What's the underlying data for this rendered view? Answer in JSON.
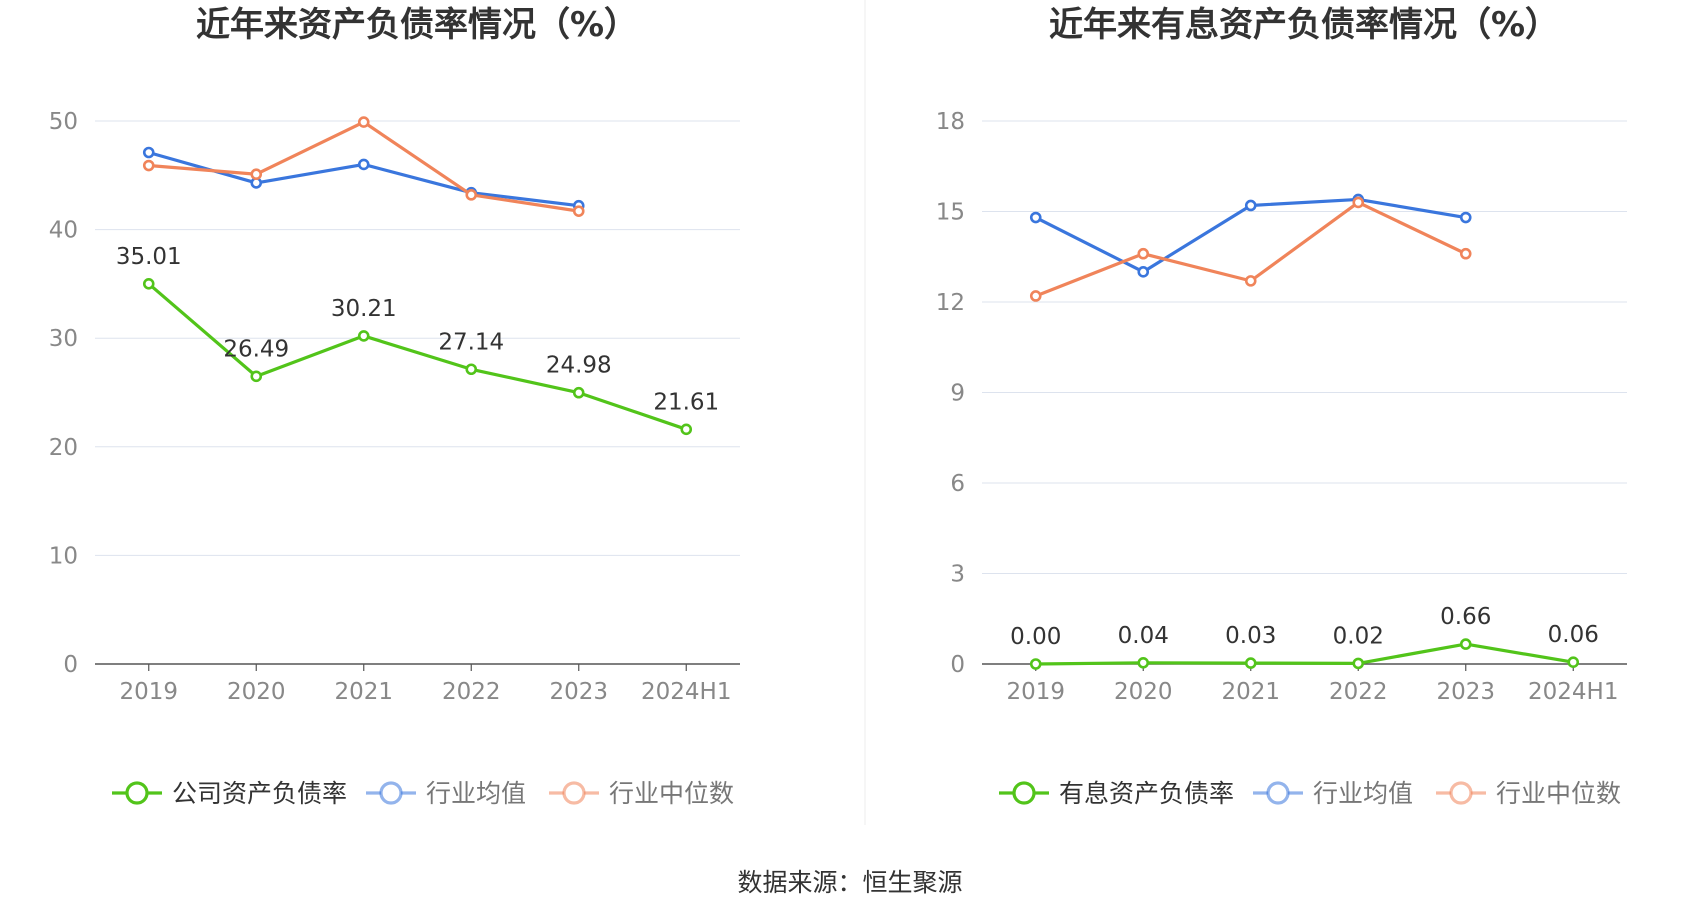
{
  "source_text": "数据来源：恒生聚源",
  "colors": {
    "company": "#52c41a",
    "avg": "#3a76dd",
    "median": "#f0845a",
    "grid": "#dde3ee",
    "axis": "#555555",
    "label": "#888888",
    "title": "#333333"
  },
  "chart_data": [
    {
      "type": "line",
      "title": "近年来资产负债率情况（%）",
      "categories": [
        "2019",
        "2020",
        "2021",
        "2022",
        "2023",
        "2024H1"
      ],
      "ylim": [
        0,
        50
      ],
      "yticks": [
        0,
        10,
        20,
        30,
        40,
        50
      ],
      "grid": true,
      "legend_position": "bottom",
      "series": [
        {
          "name": "公司资产负债率",
          "color": "#52c41a",
          "values": [
            35.01,
            26.49,
            30.21,
            27.14,
            24.98,
            21.61
          ],
          "labels": [
            "35.01",
            "26.49",
            "30.21",
            "27.14",
            "24.98",
            "21.61"
          ]
        },
        {
          "name": "行业均值",
          "color": "#3a76dd",
          "values": [
            47.1,
            44.3,
            46.0,
            43.4,
            42.2,
            null
          ]
        },
        {
          "name": "行业中位数",
          "color": "#f0845a",
          "values": [
            45.9,
            45.1,
            49.9,
            43.2,
            41.7,
            null
          ]
        }
      ]
    },
    {
      "type": "line",
      "title": "近年来有息资产负债率情况（%）",
      "categories": [
        "2019",
        "2020",
        "2021",
        "2022",
        "2023",
        "2024H1"
      ],
      "ylim": [
        0,
        18
      ],
      "yticks": [
        0,
        3,
        6,
        9,
        12,
        15,
        18
      ],
      "grid": true,
      "legend_position": "bottom",
      "series": [
        {
          "name": "有息资产负债率",
          "color": "#52c41a",
          "values": [
            0.0,
            0.04,
            0.03,
            0.02,
            0.66,
            0.06
          ],
          "labels": [
            "0.00",
            "0.04",
            "0.03",
            "0.02",
            "0.66",
            "0.06"
          ]
        },
        {
          "name": "行业均值",
          "color": "#3a76dd",
          "values": [
            14.8,
            13.0,
            15.2,
            15.4,
            14.8,
            null
          ]
        },
        {
          "name": "行业中位数",
          "color": "#f0845a",
          "values": [
            12.2,
            13.6,
            12.7,
            15.3,
            13.6,
            null
          ]
        }
      ]
    }
  ]
}
